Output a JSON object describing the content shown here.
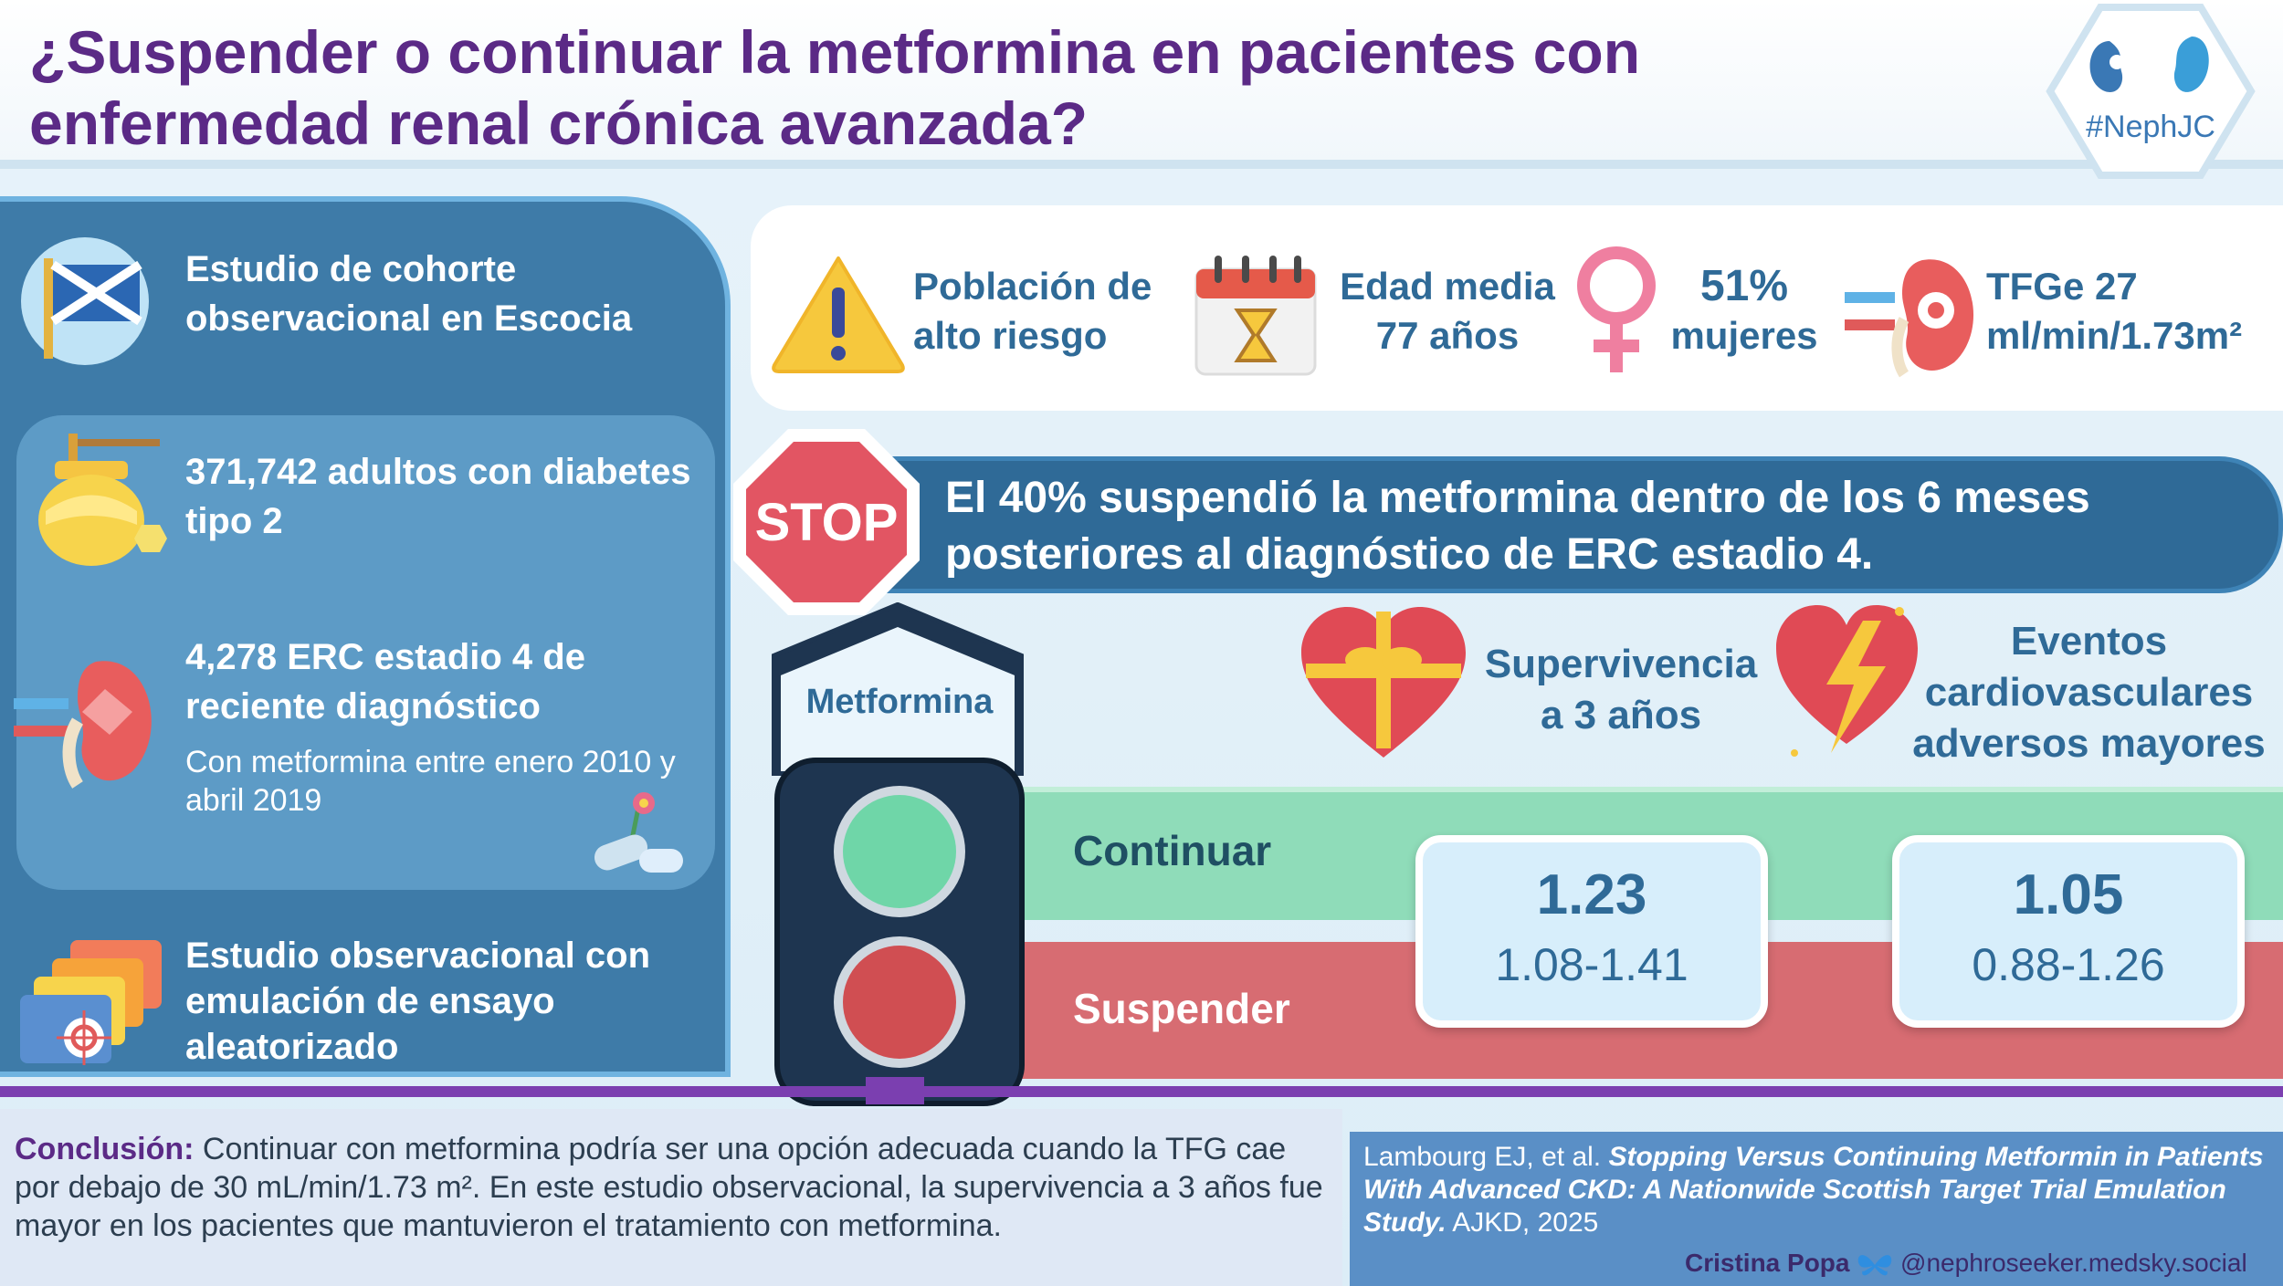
{
  "header": {
    "title_line1": "¿Suspender o continuar la metformina en pacientes con",
    "title_line2": "enfermedad renal crónica avanzada?",
    "logo_text": "#NephJC"
  },
  "left_panel": {
    "study_type": "Estudio de cohorte observacional en Escocia",
    "adults": "371,742 adultos con diabetes tipo 2",
    "ckd": "4,278 ERC estadio 4 de reciente diagnóstico",
    "ckd_sub": "Con metformina entre enero 2010 y abril 2019",
    "design": "Estudio observacional con emulación de ensayo aleatorizado"
  },
  "stats": {
    "risk": "Población de alto riesgo",
    "age_line1": "Edad media",
    "age_line2": "77 años",
    "women_pct": "51%",
    "women_label": "mujeres",
    "egfr_line1": "TFGe 27",
    "egfr_line2": "ml/min/1.73m²"
  },
  "stop": {
    "sign": "STOP",
    "line1": "El 40% suspendió la metformina dentro de los 6 meses",
    "line2": "posteriores al diagnóstico de ERC estadio 4."
  },
  "traffic_light": {
    "label": "Metformina"
  },
  "outcomes": {
    "survival_line1": "Supervivencia",
    "survival_line2": "a 3 años",
    "mace_line1": "Eventos",
    "mace_line2": "cardiovasculares",
    "mace_line3": "adversos mayores"
  },
  "rows": {
    "continue": "Continuar",
    "stop": "Suspender"
  },
  "results": {
    "survival_hr": "1.23",
    "survival_ci": "1.08-1.41",
    "mace_hr": "1.05",
    "mace_ci": "0.88-1.26"
  },
  "conclusion": {
    "label": "Conclusión:",
    "text": "Continuar con metformina podría ser una opción adecuada cuando la TFG cae por debajo de 30 mL/min/1.73 m². En este estudio observacional, la supervivencia a 3 años fue mayor en los pacientes que mantuvieron el tratamiento con metformina."
  },
  "reference": {
    "authors": "Lambourg EJ, et al. ",
    "title": "Stopping Versus Continuing Metformin in Patients With Advanced CKD: A Nationwide Scottish Target Trial Emulation Study.",
    "journal": " AJKD, 2025"
  },
  "credit": {
    "author": "Cristina Popa",
    "handle": "@nephroseeker.medsky.social"
  },
  "colors": {
    "title_purple": "#5b2a86",
    "blue_dark": "#2f6a97",
    "continue_green": "#8fdcb9",
    "stop_red": "#d76c72"
  }
}
